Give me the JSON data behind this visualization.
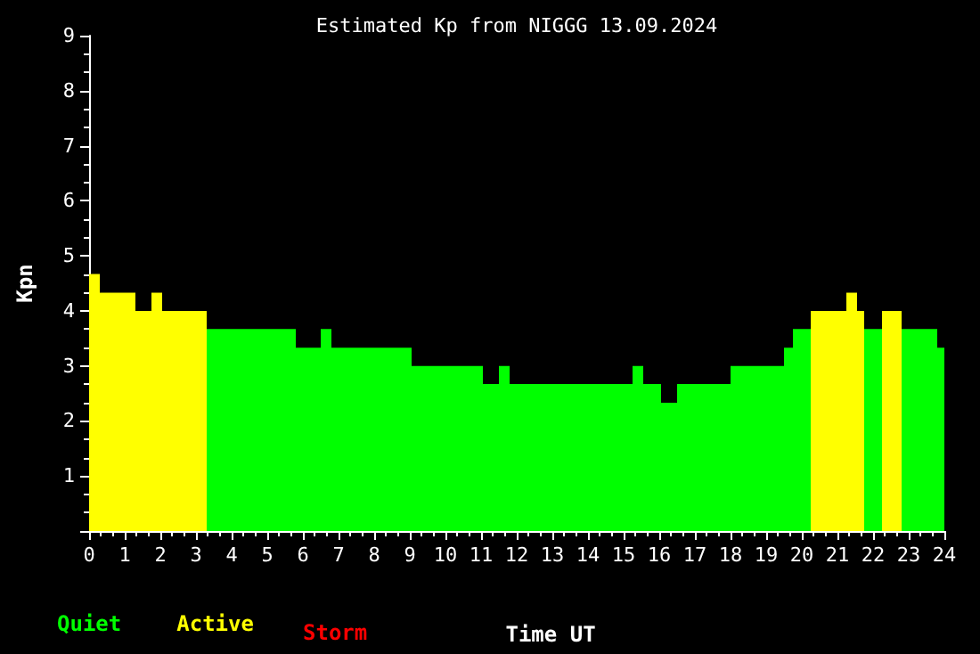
{
  "chart_data": {
    "type": "histogram",
    "title": "Estimated Kp from NIGGG 13.09.2024",
    "xlabel": "Time UT",
    "ylabel": "Kpn",
    "bins": [
      0,
      0.3,
      1.3,
      1.75,
      2.05,
      3.3,
      5.8,
      6.5,
      6.8,
      9.05,
      11.05,
      11.5,
      11.8,
      15.25,
      15.55,
      16.05,
      16.5,
      18,
      19.5,
      19.75,
      20.25,
      21.25,
      21.55,
      21.75,
      22.25,
      22.8,
      23.8,
      24
    ],
    "series": [
      {
        "name": "Quiet",
        "color": "#00ff00",
        "values": [
          null,
          null,
          null,
          null,
          null,
          3.67,
          3.33,
          3.67,
          3.33,
          3,
          2.67,
          3,
          2.67,
          3,
          2.67,
          2.33,
          2.67,
          3,
          3.33,
          3.67,
          null,
          null,
          null,
          3.67,
          null,
          3.67,
          3.33
        ]
      },
      {
        "name": "Active",
        "color": "#ffff00",
        "values": [
          4.67,
          4.33,
          4,
          4.33,
          4,
          null,
          null,
          null,
          null,
          null,
          null,
          null,
          null,
          null,
          null,
          null,
          null,
          null,
          null,
          null,
          4,
          4.33,
          4,
          null,
          4,
          null,
          null
        ]
      }
    ],
    "annotations": [
      "Storm"
    ],
    "xlim": [
      0,
      24
    ],
    "xticks": [
      0,
      1,
      2,
      3,
      4,
      5,
      6,
      7,
      8,
      9,
      10,
      11,
      12,
      13,
      14,
      15,
      16,
      17,
      18,
      19,
      20,
      21,
      22,
      23,
      24
    ],
    "ylim": [
      0,
      9
    ],
    "yticks": [
      {
        "value": 0,
        "label": null
      },
      1,
      2,
      3,
      4,
      5,
      6,
      7,
      8,
      9
    ],
    "grid": false,
    "legend": "bottom left"
  }
}
